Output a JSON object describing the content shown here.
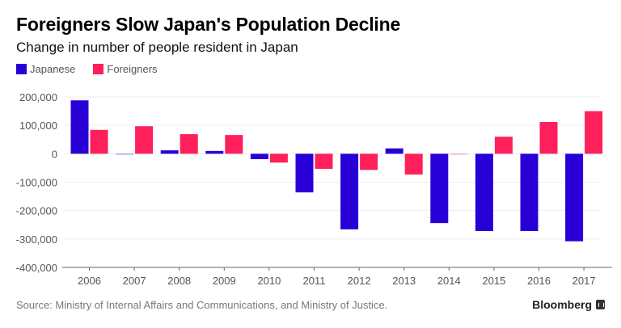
{
  "header": {
    "title": "Foreigners Slow Japan's Population Decline",
    "subtitle": "Change in number of people resident in Japan"
  },
  "legend": [
    {
      "label": "Japanese",
      "color": "#2800d7"
    },
    {
      "label": "Foreigners",
      "color": "#ff1f5a"
    }
  ],
  "footer": {
    "source": "Source: Ministry of Internal Affairs and Communications, and Ministry of Justice.",
    "brand": "Bloomberg"
  },
  "chart_data": {
    "type": "bar",
    "title": "Foreigners Slow Japan's Population Decline",
    "subtitle": "Change in number of people resident in Japan",
    "xlabel": "",
    "ylabel": "",
    "categories": [
      "2006",
      "2007",
      "2008",
      "2009",
      "2010",
      "2011",
      "2012",
      "2013",
      "2014",
      "2015",
      "2016",
      "2017"
    ],
    "series": [
      {
        "name": "Japanese",
        "color": "#2800d7",
        "values": [
          188000,
          -2000,
          12000,
          10000,
          -19000,
          -136000,
          -266000,
          19000,
          -244000,
          -272000,
          -272000,
          -308000
        ]
      },
      {
        "name": "Foreigners",
        "color": "#ff1f5a",
        "values": [
          84000,
          97000,
          69000,
          66000,
          -31000,
          -53000,
          -57000,
          -73000,
          -2000,
          60000,
          112000,
          150000
        ]
      }
    ],
    "ylim": [
      -400000,
      200000
    ],
    "yticks": [
      200000,
      100000,
      0,
      -100000,
      -200000,
      -300000,
      -400000
    ],
    "ytick_labels": [
      "200,000",
      "100,000",
      "0",
      "-100,000",
      "-200,000",
      "-300,000",
      "-400,000"
    ],
    "grid": true,
    "legend_position": "top-left"
  }
}
